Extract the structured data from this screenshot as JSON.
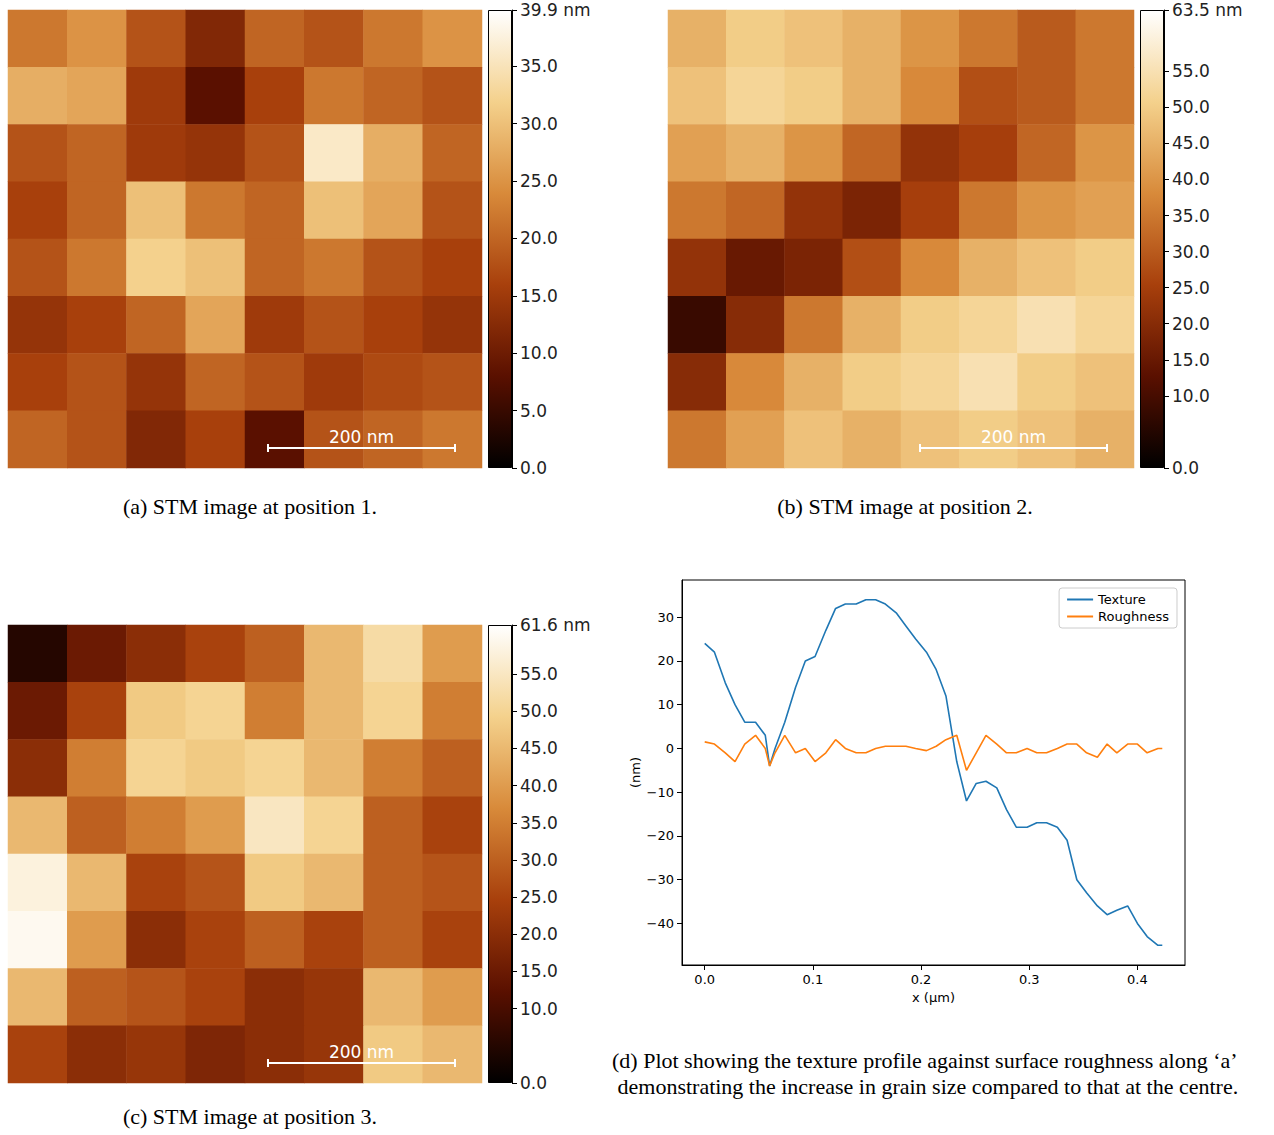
{
  "chart_data": [
    {
      "type": "heatmap",
      "caption": "(a) STM image at position 1.",
      "scale_bar": "200 nm",
      "tick_labels": false,
      "cells": [
        [
          22,
          25,
          18,
          12,
          20,
          18,
          22,
          25
        ],
        [
          28,
          27,
          15,
          8,
          16,
          22,
          20,
          18
        ],
        [
          18,
          20,
          15,
          14,
          18,
          36,
          28,
          20
        ],
        [
          16,
          20,
          30,
          22,
          20,
          30,
          27,
          18
        ],
        [
          18,
          22,
          32,
          30,
          20,
          22,
          18,
          16
        ],
        [
          14,
          16,
          20,
          27,
          15,
          18,
          16,
          14
        ],
        [
          16,
          18,
          14,
          20,
          18,
          15,
          17,
          18
        ],
        [
          20,
          18,
          12,
          16,
          8,
          18,
          20,
          22
        ]
      ],
      "colorbar": {
        "range": [
          0,
          39.9
        ],
        "ticks": [
          {
            "value": 0,
            "label": "0.0"
          },
          {
            "value": 5,
            "label": "5.0"
          },
          {
            "value": 10,
            "label": "10.0"
          },
          {
            "value": 15,
            "label": "15.0"
          },
          {
            "value": 20,
            "label": "20.0"
          },
          {
            "value": 25,
            "label": "25.0"
          },
          {
            "value": 30,
            "label": "30.0"
          },
          {
            "value": 35,
            "label": "35.0"
          },
          {
            "value": 39.9,
            "label": "39.9 nm"
          }
        ]
      }
    },
    {
      "type": "heatmap",
      "caption": "(b) STM image at position 2.",
      "scale_bar": "200 nm",
      "tick_labels": false,
      "cells": [
        [
          45,
          50,
          48,
          45,
          40,
          35,
          30,
          35
        ],
        [
          48,
          52,
          50,
          45,
          38,
          28,
          30,
          35
        ],
        [
          42,
          45,
          40,
          32,
          22,
          25,
          32,
          40
        ],
        [
          35,
          32,
          22,
          18,
          25,
          35,
          40,
          42
        ],
        [
          22,
          15,
          18,
          28,
          38,
          45,
          48,
          50
        ],
        [
          8,
          20,
          35,
          45,
          50,
          52,
          55,
          52
        ],
        [
          20,
          38,
          45,
          50,
          52,
          55,
          50,
          48
        ],
        [
          35,
          42,
          48,
          45,
          48,
          50,
          48,
          45
        ]
      ],
      "colorbar": {
        "range": [
          0,
          63.5
        ],
        "ticks": [
          {
            "value": 0,
            "label": "0.0"
          },
          {
            "value": 10,
            "label": "10.0"
          },
          {
            "value": 15,
            "label": "15.0"
          },
          {
            "value": 20,
            "label": "20.0"
          },
          {
            "value": 25,
            "label": "25.0"
          },
          {
            "value": 30,
            "label": "30.0"
          },
          {
            "value": 35,
            "label": "35.0"
          },
          {
            "value": 40,
            "label": "40.0"
          },
          {
            "value": 45,
            "label": "45.0"
          },
          {
            "value": 50,
            "label": "50.0"
          },
          {
            "value": 55,
            "label": "55.0"
          },
          {
            "value": 63.5,
            "label": "63.5 nm"
          }
        ]
      }
    },
    {
      "type": "heatmap",
      "caption": "(c) STM image at position 3.",
      "scale_bar": "200 nm",
      "tick_labels": false,
      "cells": [
        [
          5,
          15,
          20,
          25,
          30,
          45,
          52,
          40
        ],
        [
          15,
          25,
          48,
          50,
          35,
          45,
          50,
          35
        ],
        [
          20,
          35,
          50,
          48,
          50,
          45,
          35,
          30
        ],
        [
          45,
          30,
          35,
          40,
          55,
          50,
          30,
          25
        ],
        [
          58,
          45,
          25,
          28,
          48,
          45,
          30,
          28
        ],
        [
          60,
          40,
          20,
          25,
          30,
          25,
          30,
          25
        ],
        [
          45,
          30,
          28,
          25,
          20,
          22,
          45,
          40
        ],
        [
          25,
          20,
          22,
          18,
          20,
          22,
          48,
          45
        ]
      ],
      "colorbar": {
        "range": [
          0,
          61.6
        ],
        "ticks": [
          {
            "value": 0,
            "label": "0.0"
          },
          {
            "value": 10,
            "label": "10.0"
          },
          {
            "value": 15,
            "label": "15.0"
          },
          {
            "value": 20,
            "label": "20.0"
          },
          {
            "value": 25,
            "label": "25.0"
          },
          {
            "value": 30,
            "label": "30.0"
          },
          {
            "value": 35,
            "label": "35.0"
          },
          {
            "value": 40,
            "label": "40.0"
          },
          {
            "value": 45,
            "label": "45.0"
          },
          {
            "value": 50,
            "label": "50.0"
          },
          {
            "value": 55,
            "label": "55.0"
          },
          {
            "value": 61.6,
            "label": "61.6 nm"
          }
        ]
      }
    },
    {
      "type": "line",
      "caption": "(d) Plot showing the texture profile against surface roughness along ‘a’ demonstrating the increase in grain size compared to that at the centre.",
      "x_label": "x (μm)",
      "y_label": "(nm)",
      "legend": "upper right",
      "grid": false,
      "x": [
        0,
        0.009,
        0.019,
        0.028,
        0.037,
        0.047,
        0.056,
        0.06,
        0.065,
        0.074,
        0.084,
        0.093,
        0.102,
        0.112,
        0.121,
        0.13,
        0.14,
        0.149,
        0.158,
        0.167,
        0.177,
        0.186,
        0.195,
        0.205,
        0.214,
        0.223,
        0.233,
        0.242,
        0.251,
        0.26,
        0.27,
        0.279,
        0.288,
        0.298,
        0.307,
        0.316,
        0.326,
        0.335,
        0.344,
        0.353,
        0.363,
        0.372,
        0.381,
        0.391,
        0.4,
        0.409,
        0.419,
        0.423
      ],
      "series": [
        {
          "name": "Texture",
          "color": "#1f77b4",
          "values": [
            24,
            22,
            15,
            10,
            6,
            6,
            3,
            -4,
            0,
            6,
            14,
            20,
            21,
            27,
            32,
            33,
            33,
            34,
            34,
            33,
            31,
            28,
            25,
            22,
            18,
            12,
            -3,
            -12,
            -8,
            -7.5,
            -9,
            -14,
            -18,
            -18,
            -17,
            -17,
            -18,
            -21,
            -30,
            -33,
            -36,
            -38,
            -37,
            -36,
            -40,
            -43,
            -45,
            -45
          ]
        },
        {
          "name": "Roughness",
          "color": "#ff7f0e",
          "values": [
            1.5,
            1,
            -1,
            -3,
            1,
            3,
            0,
            -4,
            -1,
            3,
            -1,
            0,
            -3,
            -1,
            2,
            0,
            -1,
            -1,
            0,
            0.5,
            0.5,
            0.5,
            0,
            -0.5,
            0.5,
            2,
            3,
            -5,
            -1,
            3,
            1,
            -1,
            -1,
            0,
            -1,
            -1,
            0,
            1,
            1,
            -1,
            -2,
            1,
            -1,
            1,
            1,
            -1,
            0,
            0
          ]
        }
      ],
      "xlim": [
        -0.021,
        0.444
      ],
      "ylim": [
        -49.5,
        38.5
      ],
      "xticks": [
        {
          "value": 0,
          "label": "0.0"
        },
        0.1,
        0.2,
        0.3,
        0.4
      ],
      "yticks": [
        {
          "value": -40,
          "label": "−40"
        },
        {
          "value": -30,
          "label": "−30"
        },
        {
          "value": -20,
          "label": "−20"
        },
        {
          "value": -10,
          "label": "−10"
        },
        0,
        10,
        20,
        30
      ]
    }
  ]
}
